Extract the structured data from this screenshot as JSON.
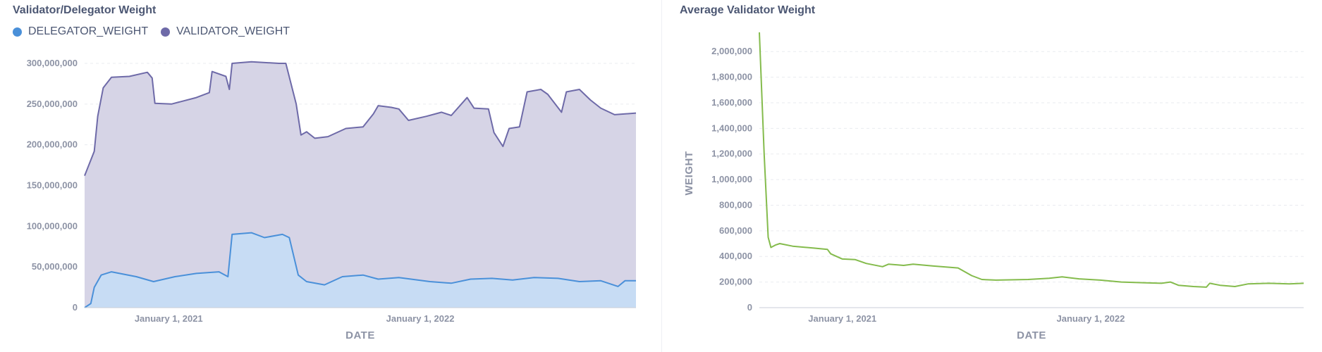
{
  "chart_data": [
    {
      "type": "area",
      "title": "Validator/Delegator Weight",
      "xlabel": "DATE",
      "ylabel": "",
      "ylim": [
        0,
        300000000
      ],
      "y_ticks": [
        "0",
        "50,000,000",
        "100,000,000",
        "150,000,000",
        "200,000,000",
        "250,000,000",
        "300,000,000"
      ],
      "x_ticks": [
        {
          "date": "2021-01-01",
          "label": "January 1, 2021"
        },
        {
          "date": "2022-01-01",
          "label": "January 1, 2022"
        }
      ],
      "x_range": [
        "2020-09-01",
        "2022-11-10"
      ],
      "grid": true,
      "legend": "top-left",
      "series": [
        {
          "name": "VALIDATOR_WEIGHT",
          "color": "#6e6aa8",
          "fill": "#d6d4e6",
          "points": [
            [
              "2020-09-01",
              162000000
            ],
            [
              "2020-09-15",
              192000000
            ],
            [
              "2020-09-20",
              235000000
            ],
            [
              "2020-09-28",
              270000000
            ],
            [
              "2020-10-10",
              283000000
            ],
            [
              "2020-11-05",
              284000000
            ],
            [
              "2020-12-01",
              289000000
            ],
            [
              "2020-12-08",
              282000000
            ],
            [
              "2020-12-12",
              251000000
            ],
            [
              "2021-01-05",
              250000000
            ],
            [
              "2021-02-10",
              258000000
            ],
            [
              "2021-03-01",
              264000000
            ],
            [
              "2021-03-05",
              290000000
            ],
            [
              "2021-03-25",
              284000000
            ],
            [
              "2021-03-30",
              268000000
            ],
            [
              "2021-04-03",
              300000000
            ],
            [
              "2021-05-01",
              302000000
            ],
            [
              "2021-06-10",
              300000000
            ],
            [
              "2021-06-20",
              300000000
            ],
            [
              "2021-07-05",
              250000000
            ],
            [
              "2021-07-12",
              212000000
            ],
            [
              "2021-07-20",
              216000000
            ],
            [
              "2021-08-01",
              208000000
            ],
            [
              "2021-08-20",
              210000000
            ],
            [
              "2021-09-15",
              220000000
            ],
            [
              "2021-10-10",
              222000000
            ],
            [
              "2021-10-25",
              238000000
            ],
            [
              "2021-11-01",
              248000000
            ],
            [
              "2021-11-20",
              246000000
            ],
            [
              "2021-12-01",
              244000000
            ],
            [
              "2021-12-15",
              230000000
            ],
            [
              "2022-01-10",
              235000000
            ],
            [
              "2022-02-01",
              240000000
            ],
            [
              "2022-02-15",
              236000000
            ],
            [
              "2022-03-10",
              258000000
            ],
            [
              "2022-03-20",
              245000000
            ],
            [
              "2022-04-10",
              244000000
            ],
            [
              "2022-04-18",
              215000000
            ],
            [
              "2022-05-01",
              198000000
            ],
            [
              "2022-05-10",
              220000000
            ],
            [
              "2022-05-25",
              222000000
            ],
            [
              "2022-06-05",
              265000000
            ],
            [
              "2022-06-25",
              268000000
            ],
            [
              "2022-07-05",
              262000000
            ],
            [
              "2022-07-25",
              240000000
            ],
            [
              "2022-08-01",
              265000000
            ],
            [
              "2022-08-20",
              268000000
            ],
            [
              "2022-09-05",
              255000000
            ],
            [
              "2022-09-20",
              245000000
            ],
            [
              "2022-10-10",
              237000000
            ],
            [
              "2022-11-10",
              239000000
            ]
          ]
        },
        {
          "name": "DELEGATOR_WEIGHT",
          "color": "#4a90d9",
          "fill": "#c7dcf4",
          "points": [
            [
              "2020-09-01",
              0
            ],
            [
              "2020-09-10",
              5000000
            ],
            [
              "2020-09-15",
              25000000
            ],
            [
              "2020-09-25",
              40000000
            ],
            [
              "2020-10-10",
              44000000
            ],
            [
              "2020-11-15",
              38000000
            ],
            [
              "2020-12-10",
              32000000
            ],
            [
              "2021-01-10",
              38000000
            ],
            [
              "2021-02-10",
              42000000
            ],
            [
              "2021-03-15",
              44000000
            ],
            [
              "2021-03-28",
              38000000
            ],
            [
              "2021-04-03",
              90000000
            ],
            [
              "2021-05-01",
              92000000
            ],
            [
              "2021-05-20",
              86000000
            ],
            [
              "2021-06-15",
              90000000
            ],
            [
              "2021-06-25",
              86000000
            ],
            [
              "2021-07-08",
              40000000
            ],
            [
              "2021-07-20",
              32000000
            ],
            [
              "2021-08-15",
              28000000
            ],
            [
              "2021-09-10",
              38000000
            ],
            [
              "2021-10-10",
              40000000
            ],
            [
              "2021-11-01",
              35000000
            ],
            [
              "2021-12-01",
              37000000
            ],
            [
              "2022-01-15",
              32000000
            ],
            [
              "2022-02-15",
              30000000
            ],
            [
              "2022-03-15",
              35000000
            ],
            [
              "2022-04-15",
              36000000
            ],
            [
              "2022-05-15",
              34000000
            ],
            [
              "2022-06-15",
              37000000
            ],
            [
              "2022-07-20",
              36000000
            ],
            [
              "2022-08-20",
              32000000
            ],
            [
              "2022-09-20",
              33000000
            ],
            [
              "2022-10-15",
              26000000
            ],
            [
              "2022-10-25",
              33000000
            ],
            [
              "2022-11-10",
              33000000
            ]
          ]
        }
      ]
    },
    {
      "type": "line",
      "title": "Average Validator Weight",
      "xlabel": "DATE",
      "ylabel": "WEIGHT",
      "ylim": [
        0,
        2100000
      ],
      "y_ticks": [
        "0",
        "200,000",
        "400,000",
        "600,000",
        "800,000",
        "1,000,000",
        "1,200,000",
        "1,400,000",
        "1,600,000",
        "1,800,000",
        "2,000,000"
      ],
      "x_ticks": [
        {
          "date": "2021-01-01",
          "label": "January 1, 2021"
        },
        {
          "date": "2022-01-01",
          "label": "January 1, 2022"
        }
      ],
      "x_range": [
        "2020-09-01",
        "2022-11-10"
      ],
      "grid": true,
      "series": [
        {
          "color": "#84bb4c",
          "points": [
            [
              "2020-09-01",
              2150000
            ],
            [
              "2020-09-08",
              1200000
            ],
            [
              "2020-09-14",
              550000
            ],
            [
              "2020-09-18",
              470000
            ],
            [
              "2020-09-25",
              490000
            ],
            [
              "2020-10-01",
              500000
            ],
            [
              "2020-10-20",
              480000
            ],
            [
              "2020-11-20",
              465000
            ],
            [
              "2020-12-10",
              455000
            ],
            [
              "2020-12-15",
              420000
            ],
            [
              "2021-01-01",
              380000
            ],
            [
              "2021-01-20",
              375000
            ],
            [
              "2021-02-05",
              345000
            ],
            [
              "2021-03-01",
              320000
            ],
            [
              "2021-03-10",
              340000
            ],
            [
              "2021-04-01",
              330000
            ],
            [
              "2021-04-15",
              340000
            ],
            [
              "2021-05-15",
              325000
            ],
            [
              "2021-06-20",
              310000
            ],
            [
              "2021-07-10",
              250000
            ],
            [
              "2021-07-25",
              220000
            ],
            [
              "2021-08-15",
              215000
            ],
            [
              "2021-10-01",
              220000
            ],
            [
              "2021-11-01",
              230000
            ],
            [
              "2021-11-20",
              240000
            ],
            [
              "2021-12-15",
              225000
            ],
            [
              "2022-01-15",
              215000
            ],
            [
              "2022-02-15",
              200000
            ],
            [
              "2022-03-15",
              195000
            ],
            [
              "2022-04-15",
              190000
            ],
            [
              "2022-04-28",
              200000
            ],
            [
              "2022-05-10",
              175000
            ],
            [
              "2022-06-01",
              165000
            ],
            [
              "2022-06-20",
              160000
            ],
            [
              "2022-06-25",
              190000
            ],
            [
              "2022-07-10",
              175000
            ],
            [
              "2022-08-01",
              165000
            ],
            [
              "2022-08-20",
              185000
            ],
            [
              "2022-09-20",
              190000
            ],
            [
              "2022-10-20",
              185000
            ],
            [
              "2022-11-10",
              190000
            ]
          ]
        }
      ]
    }
  ]
}
